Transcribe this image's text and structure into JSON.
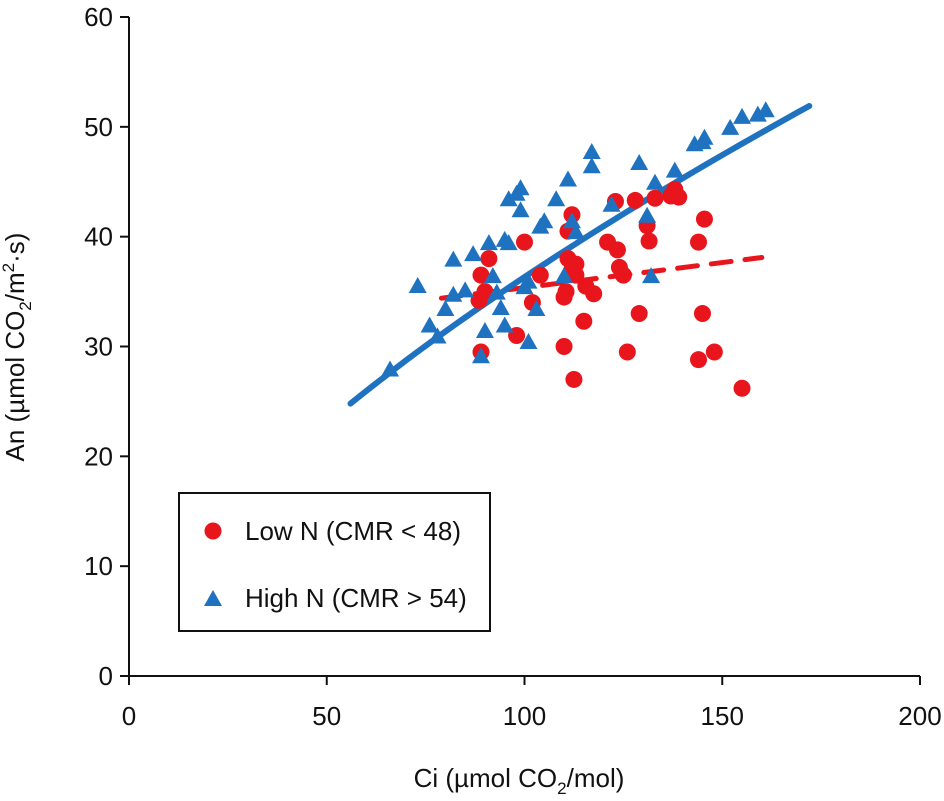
{
  "chart_data": {
    "type": "scatter",
    "xlabel": {
      "pre": "Ci (µmol CO",
      "sub": "2",
      "post": "/mol)"
    },
    "ylabel": {
      "pre": "An (µmol CO",
      "sub": "2",
      "mid": "/m",
      "sup": "2",
      "post": "·s)"
    },
    "xlim": [
      0,
      200
    ],
    "ylim": [
      0,
      60
    ],
    "xticks": [
      "0",
      "50",
      "100",
      "150",
      "200"
    ],
    "yticks": [
      "0",
      "10",
      "20",
      "30",
      "40",
      "50",
      "60"
    ],
    "grid": false,
    "legend_position": "bottom-left",
    "series": [
      {
        "name": "Low N (CMR < 48)",
        "marker": "circle",
        "color": "#e8161c",
        "points": [
          [
            89,
            29.5
          ],
          [
            88.5,
            34.2
          ],
          [
            89,
            36.5
          ],
          [
            91,
            38
          ],
          [
            90,
            35
          ],
          [
            98,
            31
          ],
          [
            100,
            39.5
          ],
          [
            102,
            34
          ],
          [
            104,
            36.5
          ],
          [
            110,
            30
          ],
          [
            110,
            34.5
          ],
          [
            110.5,
            35
          ],
          [
            111,
            38
          ],
          [
            111,
            40.5
          ],
          [
            112,
            42
          ],
          [
            112,
            37
          ],
          [
            113,
            37.5
          ],
          [
            113,
            36.5
          ],
          [
            112.5,
            27
          ],
          [
            115,
            32.3
          ],
          [
            115.5,
            35.5
          ],
          [
            117.5,
            34.8
          ],
          [
            121,
            39.5
          ],
          [
            123,
            43.2
          ],
          [
            123.5,
            38.8
          ],
          [
            124,
            37.2
          ],
          [
            125,
            36.5
          ],
          [
            126,
            29.5
          ],
          [
            128,
            43.3
          ],
          [
            129,
            33
          ],
          [
            131,
            41
          ],
          [
            131.5,
            39.6
          ],
          [
            133,
            43.5
          ],
          [
            137,
            43.7
          ],
          [
            138,
            44.3
          ],
          [
            139,
            43.6
          ],
          [
            144,
            39.5
          ],
          [
            144,
            28.8
          ],
          [
            145,
            33
          ],
          [
            145.5,
            41.6
          ],
          [
            148,
            29.5
          ],
          [
            155,
            26.2
          ]
        ]
      },
      {
        "name": "High N (CMR > 54)",
        "marker": "triangle",
        "color": "#1f72c0",
        "points": [
          [
            66,
            28
          ],
          [
            73,
            35.6
          ],
          [
            76,
            32
          ],
          [
            78,
            31
          ],
          [
            80,
            33.5
          ],
          [
            82,
            34.8
          ],
          [
            82,
            38
          ],
          [
            85,
            35.2
          ],
          [
            87,
            38.5
          ],
          [
            89,
            29.2
          ],
          [
            90,
            31.5
          ],
          [
            91,
            39.5
          ],
          [
            92,
            36.5
          ],
          [
            93,
            35
          ],
          [
            94,
            33.6
          ],
          [
            95,
            32
          ],
          [
            95,
            39.8
          ],
          [
            96,
            39.5
          ],
          [
            96,
            43.5
          ],
          [
            98,
            44
          ],
          [
            99,
            44.5
          ],
          [
            99,
            42.5
          ],
          [
            100,
            35.5
          ],
          [
            101,
            30.5
          ],
          [
            101,
            36
          ],
          [
            103,
            33.5
          ],
          [
            104,
            41
          ],
          [
            105,
            41.5
          ],
          [
            108,
            43.5
          ],
          [
            110,
            36.5
          ],
          [
            111,
            45.3
          ],
          [
            112,
            41.5
          ],
          [
            113,
            40.5
          ],
          [
            117,
            46.5
          ],
          [
            117,
            47.8
          ],
          [
            122,
            43
          ],
          [
            129,
            46.8
          ],
          [
            131,
            42
          ],
          [
            132,
            36.5
          ],
          [
            133,
            45
          ],
          [
            138,
            46.1
          ],
          [
            143,
            48.5
          ],
          [
            145,
            48.7
          ],
          [
            145.5,
            49.1
          ],
          [
            152,
            50
          ],
          [
            155,
            51
          ],
          [
            159,
            51.2
          ],
          [
            161,
            51.6
          ]
        ]
      }
    ],
    "trendlines": [
      {
        "series": "Low N (CMR < 48)",
        "style": "dashed",
        "color": "#e8161c",
        "x": [
          79,
          160
        ],
        "y": [
          34.4,
          38.1
        ]
      },
      {
        "series": "High N (CMR > 54)",
        "style": "solid",
        "color": "#1f72c0",
        "x": [
          56,
          172
        ],
        "y": [
          24.8,
          51.9
        ]
      }
    ]
  }
}
